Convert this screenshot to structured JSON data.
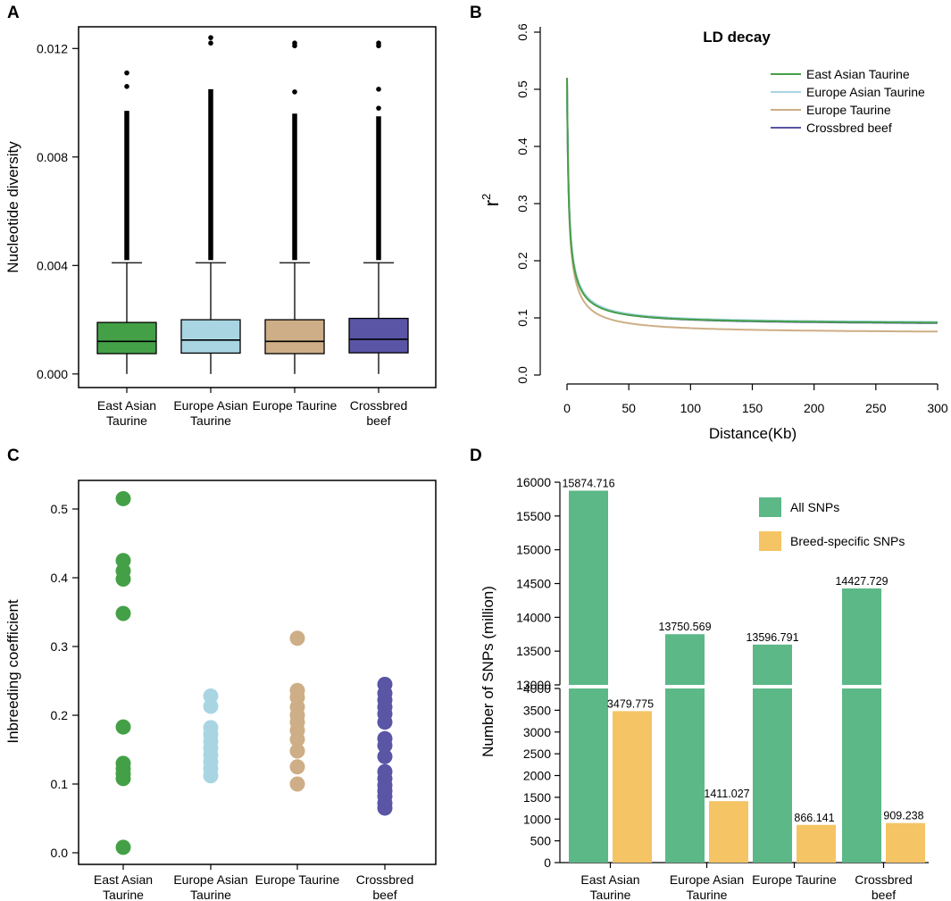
{
  "panels": {
    "a": "A",
    "b": "B",
    "c": "C",
    "d": "D"
  },
  "colors": {
    "east_asian_taurine": "#44a047",
    "europe_asian_taurine": "#a9d5e3",
    "europe_taurine": "#cdae86",
    "crossbred_beef": "#5a55a5",
    "all_snps": "#5cb887",
    "breed_specific": "#f5c464"
  },
  "chart_data": [
    {
      "type": "box",
      "panel": "A",
      "ylabel": "Nucleotide diversity",
      "ylim": [
        -0.0005,
        0.0128
      ],
      "yticks": [
        0.0,
        0.004,
        0.008,
        0.012
      ],
      "ytick_labels": [
        "0.000",
        "0.004",
        "0.008",
        "0.012"
      ],
      "categories": [
        [
          "East Asian",
          "Taurine"
        ],
        [
          "Europe Asian",
          "Taurine"
        ],
        [
          "Europe Taurine"
        ],
        [
          "Crossbred",
          "beef"
        ]
      ],
      "boxes": [
        {
          "color": "#44a047",
          "whisker_low": 0.0,
          "q1": 0.00075,
          "median": 0.0012,
          "q3": 0.0019,
          "whisker_high": 0.0041,
          "outliers_dense_to": 0.0097,
          "outliers": [
            0.0106,
            0.0111
          ]
        },
        {
          "color": "#a9d5e3",
          "whisker_low": 0.0,
          "q1": 0.00077,
          "median": 0.00125,
          "q3": 0.002,
          "whisker_high": 0.0041,
          "outliers_dense_to": 0.0105,
          "outliers": [
            0.0122,
            0.0124
          ]
        },
        {
          "color": "#cdae86",
          "whisker_low": 0.0,
          "q1": 0.00075,
          "median": 0.0012,
          "q3": 0.002,
          "whisker_high": 0.0041,
          "outliers_dense_to": 0.0096,
          "outliers": [
            0.0104,
            0.0121,
            0.0122
          ]
        },
        {
          "color": "#5a55a5",
          "whisker_low": 0.0,
          "q1": 0.00078,
          "median": 0.00128,
          "q3": 0.00205,
          "whisker_high": 0.0041,
          "outliers_dense_to": 0.0095,
          "outliers": [
            0.0098,
            0.0105,
            0.0121,
            0.0122
          ]
        }
      ]
    },
    {
      "type": "line",
      "panel": "B",
      "title": "LD decay",
      "xlabel": "Distance(Kb)",
      "ylabel": "r",
      "ylabel_sup": "2",
      "xlim": [
        -10,
        302
      ],
      "ylim": [
        -0.02,
        0.61
      ],
      "xticks": [
        0,
        50,
        100,
        150,
        200,
        250,
        300
      ],
      "yticks": [
        0.0,
        0.1,
        0.2,
        0.3,
        0.4,
        0.5,
        0.6
      ],
      "ytick_labels": [
        "0.0",
        "0.1",
        "0.2",
        "0.3",
        "0.4",
        "0.5",
        "0.6"
      ],
      "series": [
        {
          "name": "East Asian Taurine",
          "color": "#44a047",
          "a": 0.3,
          "b": 0.35,
          "c": 0.089
        },
        {
          "name": "Europe Asian Taurine",
          "color": "#a9d5e3",
          "a": 0.3,
          "b": 0.33,
          "c": 0.09
        },
        {
          "name": "Europe Taurine",
          "color": "#cdae86",
          "a": 0.3,
          "b": 0.32,
          "c": 0.073
        },
        {
          "name": "Crossbred beef",
          "color": "#5a55a5",
          "a": 0.3,
          "b": 0.33,
          "c": 0.088
        }
      ]
    },
    {
      "type": "scatter",
      "panel": "C",
      "ylabel": "Inbreeding coefficient",
      "ylim": [
        -0.02,
        0.545
      ],
      "yticks": [
        0.0,
        0.1,
        0.2,
        0.3,
        0.4,
        0.5
      ],
      "ytick_labels": [
        "0.0",
        "0.1",
        "0.2",
        "0.3",
        "0.4",
        "0.5"
      ],
      "categories": [
        [
          "East Asian",
          "Taurine"
        ],
        [
          "Europe Asian",
          "Taurine"
        ],
        [
          "Europe Taurine"
        ],
        [
          "Crossbred",
          "beef"
        ]
      ],
      "groups": [
        {
          "color": "#44a047",
          "values": [
            0.515,
            0.425,
            0.41,
            0.398,
            0.348,
            0.183,
            0.13,
            0.122,
            0.115,
            0.108,
            0.008
          ]
        },
        {
          "color": "#a9d5e3",
          "values": [
            0.228,
            0.213,
            0.182,
            0.172,
            0.162,
            0.152,
            0.142,
            0.132,
            0.122,
            0.112
          ]
        },
        {
          "color": "#cdae86",
          "values": [
            0.312,
            0.236,
            0.226,
            0.212,
            0.2,
            0.19,
            0.178,
            0.165,
            0.148,
            0.125,
            0.1
          ]
        },
        {
          "color": "#5a55a5",
          "values": [
            0.245,
            0.232,
            0.222,
            0.212,
            0.202,
            0.19,
            0.166,
            0.156,
            0.14,
            0.118,
            0.108,
            0.098,
            0.09,
            0.082,
            0.072,
            0.065
          ]
        }
      ]
    },
    {
      "type": "bar",
      "panel": "D",
      "ylabel": "Number of SNPs (million)",
      "broken_axis": true,
      "upper_range": [
        13000,
        16000
      ],
      "lower_range": [
        0,
        4000
      ],
      "upper_ticks": [
        13000,
        13500,
        14000,
        14500,
        15000,
        15500,
        16000
      ],
      "lower_ticks": [
        0,
        500,
        1000,
        1500,
        2000,
        2500,
        3000,
        3500,
        4000
      ],
      "categories": [
        [
          "East Asian",
          "Taurine"
        ],
        [
          "Europe Asian",
          "Taurine"
        ],
        [
          "Europe Taurine"
        ],
        [
          "Crossbred",
          "beef"
        ]
      ],
      "series": [
        {
          "name": "All SNPs",
          "color": "#5cb887",
          "values": [
            15874.716,
            13750.569,
            13596.791,
            14427.729
          ],
          "labels": [
            "15874.716",
            "13750.569",
            "13596.791",
            "14427.729"
          ]
        },
        {
          "name": "Breed-specific SNPs",
          "color": "#f5c464",
          "values": [
            3479.775,
            1411.027,
            866.141,
            909.238
          ],
          "labels": [
            "3479.775",
            "1411.027",
            "866.141",
            "909.238"
          ]
        }
      ]
    }
  ]
}
